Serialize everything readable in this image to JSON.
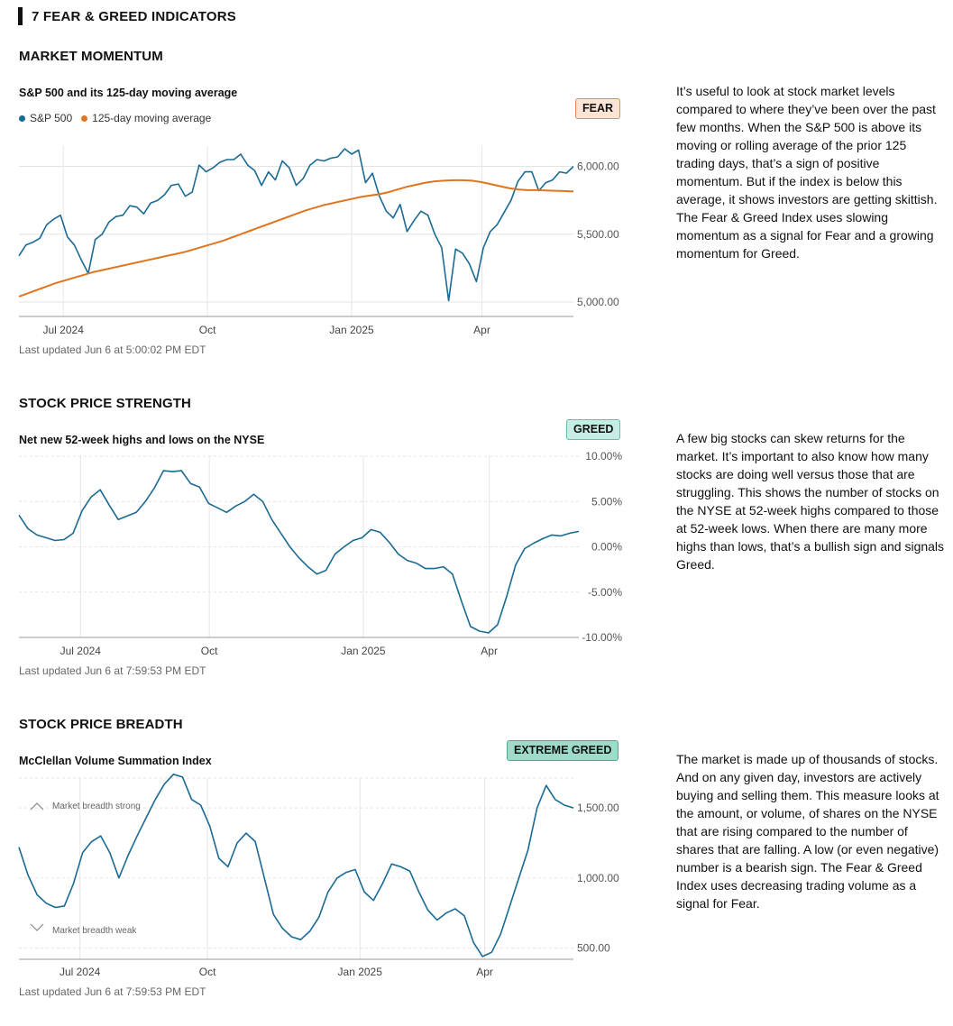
{
  "header": {
    "title": "7 FEAR & GREED INDICATORS"
  },
  "sections": [
    {
      "title": "MARKET MOMENTUM",
      "chart_title": "S&P 500 and its 125-day moving average",
      "legend": [
        {
          "label": "S&P 500",
          "color": "#1a6a94"
        },
        {
          "label": "125-day moving average",
          "color": "#e07520"
        }
      ],
      "badge": "FEAR",
      "updated": "Last updated Jun 6 at 5:00:02 PM EDT",
      "description": "It’s useful to look at stock market levels compared to where they’ve been over the past few months. When the S&P 500 is above its moving or rolling average of the prior 125 trading days, that’s a sign of positive momentum. But if the index is below this average, it shows investors are getting skittish. The Fear & Greed Index uses slowing momentum as a signal for Fear and a growing momentum for Greed."
    },
    {
      "title": "STOCK PRICE STRENGTH",
      "chart_title": "Net new 52-week highs and lows on the NYSE",
      "badge": "GREED",
      "updated": "Last updated Jun 6 at 7:59:53 PM EDT",
      "description": "A few big stocks can skew returns for the market. It’s important to also know how many stocks are doing well versus those that are struggling. This shows the number of stocks on the NYSE at 52-week highs compared to those at 52-week lows. When there are many more highs than lows, that’s a bullish sign and signals Greed."
    },
    {
      "title": "STOCK PRICE BREADTH",
      "chart_title": "McClellan Volume Summation Index",
      "badge": "EXTREME GREED",
      "updated": "Last updated Jun 6 at 7:59:53 PM EDT",
      "description": "The market is made up of thousands of stocks. And on any given day, investors are actively buying and selling them. This measure looks at the amount, or volume, of shares on the NYSE that are rising compared to the number of shares that are falling. A low (or even negative) number is a bearish sign. The Fear & Greed Index uses decreasing trading volume as a signal for Fear.",
      "annotations": {
        "strong": "Market breadth strong",
        "weak": "Market breadth weak"
      }
    }
  ],
  "chart_data": [
    {
      "type": "line",
      "title": "S&P 500 and its 125-day moving average",
      "x_ticks": [
        "Jul 2024",
        "Oct",
        "Jan 2025",
        "Apr"
      ],
      "x_tick_pos": [
        0.08,
        0.34,
        0.6,
        0.835
      ],
      "y_ticks": [
        5000,
        5500,
        6000
      ],
      "y_tick_labels": [
        "5,000.00",
        "5,500.00",
        "6,000.00"
      ],
      "ylim": [
        4900,
        6150
      ],
      "series": [
        {
          "name": "S&P 500",
          "color": "#1a6a94",
          "values": [
            5340,
            5420,
            5440,
            5470,
            5570,
            5610,
            5640,
            5480,
            5420,
            5310,
            5210,
            5460,
            5500,
            5590,
            5630,
            5640,
            5710,
            5700,
            5650,
            5730,
            5750,
            5790,
            5860,
            5870,
            5780,
            5810,
            6010,
            5960,
            5990,
            6030,
            6050,
            6050,
            6090,
            6010,
            5970,
            5860,
            5960,
            5900,
            6040,
            5990,
            5860,
            5910,
            6010,
            6050,
            6040,
            6060,
            6070,
            6130,
            6090,
            6120,
            5880,
            5950,
            5780,
            5670,
            5620,
            5720,
            5520,
            5600,
            5670,
            5640,
            5500,
            5400,
            5010,
            5390,
            5360,
            5280,
            5150,
            5400,
            5520,
            5570,
            5660,
            5750,
            5890,
            5960,
            5960,
            5820,
            5880,
            5900,
            5960,
            5950,
            6000
          ]
        },
        {
          "name": "125-day moving average",
          "color": "#e07520",
          "values": [
            5040,
            5065,
            5090,
            5115,
            5140,
            5160,
            5180,
            5200,
            5220,
            5235,
            5250,
            5265,
            5280,
            5295,
            5310,
            5325,
            5340,
            5355,
            5370,
            5390,
            5410,
            5430,
            5450,
            5475,
            5500,
            5525,
            5550,
            5575,
            5600,
            5625,
            5650,
            5675,
            5695,
            5715,
            5730,
            5745,
            5760,
            5775,
            5785,
            5795,
            5810,
            5830,
            5850,
            5865,
            5880,
            5890,
            5895,
            5898,
            5898,
            5895,
            5885,
            5870,
            5855,
            5840,
            5830,
            5825,
            5825,
            5822,
            5820,
            5818,
            5815
          ]
        }
      ]
    },
    {
      "type": "line",
      "title": "Net new 52-week highs and lows on the NYSE",
      "x_ticks": [
        "Jul 2024",
        "Oct",
        "Jan 2025",
        "Apr"
      ],
      "x_tick_pos": [
        0.11,
        0.34,
        0.615,
        0.84
      ],
      "y_ticks": [
        -10,
        -5,
        0,
        5,
        10
      ],
      "y_tick_labels": [
        "-10.00%",
        "-5.00%",
        "0.00%",
        "5.00%",
        "10.00%"
      ],
      "ylim": [
        -10,
        10
      ],
      "series": [
        {
          "name": "",
          "color": "#1a6a94",
          "values": [
            3.5,
            2.0,
            1.3,
            1.0,
            0.7,
            0.8,
            1.5,
            4.0,
            5.5,
            6.3,
            4.6,
            3.0,
            3.4,
            3.8,
            5.0,
            6.5,
            8.4,
            8.3,
            8.4,
            7.0,
            6.6,
            4.8,
            4.3,
            3.8,
            4.5,
            5.0,
            5.8,
            5.0,
            3.0,
            1.5,
            0.0,
            -1.2,
            -2.2,
            -3.0,
            -2.6,
            -0.8,
            0.0,
            0.7,
            1.0,
            1.9,
            1.6,
            0.5,
            -0.8,
            -1.5,
            -1.8,
            -2.4,
            -2.4,
            -2.2,
            -3.0,
            -6.0,
            -8.8,
            -9.3,
            -9.5,
            -8.6,
            -5.5,
            -2.0,
            -0.2,
            0.4,
            0.9,
            1.3,
            1.2,
            1.5,
            1.7
          ]
        }
      ]
    },
    {
      "type": "line",
      "title": "McClellan Volume Summation Index",
      "x_ticks": [
        "Jul 2024",
        "Oct",
        "Jan 2025",
        "Apr"
      ],
      "x_tick_pos": [
        0.11,
        0.34,
        0.615,
        0.84
      ],
      "y_ticks": [
        500,
        1000,
        1500
      ],
      "y_tick_labels": [
        "500.00",
        "1,000.00",
        "1,500.00"
      ],
      "ylim": [
        420,
        1700
      ],
      "series": [
        {
          "name": "",
          "color": "#1a6a94",
          "values": [
            1220,
            1020,
            880,
            820,
            790,
            800,
            960,
            1180,
            1260,
            1300,
            1180,
            1000,
            1160,
            1300,
            1430,
            1560,
            1670,
            1740,
            1720,
            1560,
            1520,
            1370,
            1140,
            1080,
            1250,
            1320,
            1260,
            1000,
            740,
            640,
            580,
            560,
            620,
            720,
            900,
            1000,
            1040,
            1060,
            900,
            840,
            960,
            1100,
            1080,
            1050,
            900,
            770,
            700,
            750,
            780,
            730,
            540,
            440,
            470,
            600,
            800,
            1000,
            1200,
            1500,
            1660,
            1560,
            1520,
            1500
          ]
        }
      ]
    }
  ]
}
